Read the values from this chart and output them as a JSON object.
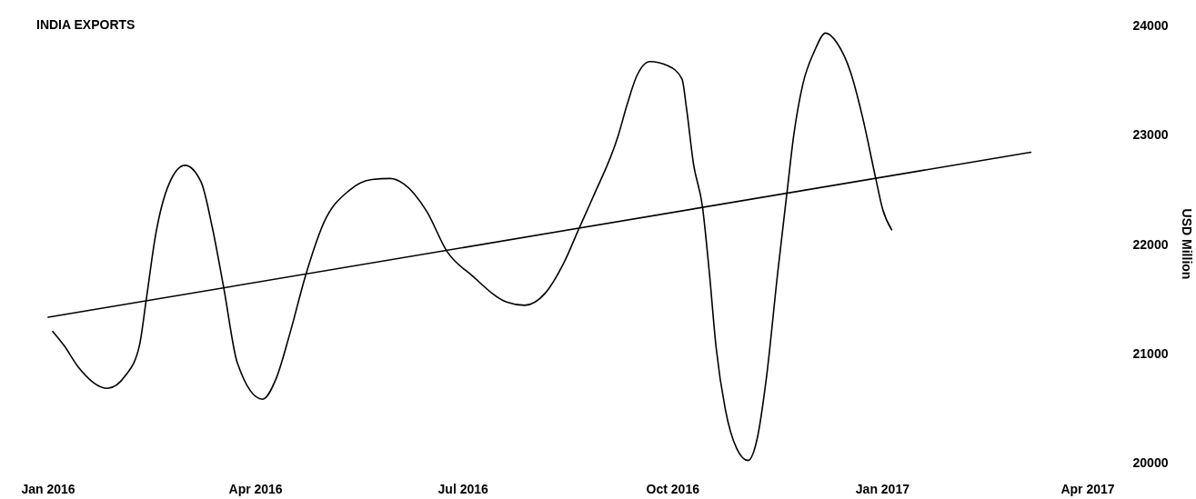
{
  "chart_data": {
    "type": "line",
    "title": "INDIA EXPORTS",
    "ylabel": "USD Million",
    "xlim": [
      "2016-01-01",
      "2017-04-01"
    ],
    "xticks": [
      {
        "value": "2016-01-01",
        "label": "Jan 2016"
      },
      {
        "value": "2016-04-01",
        "label": "Apr 2016"
      },
      {
        "value": "2016-07-01",
        "label": "Jul 2016"
      },
      {
        "value": "2016-10-01",
        "label": "Oct 2016"
      },
      {
        "value": "2017-01-01",
        "label": "Jan 2017"
      },
      {
        "value": "2017-04-01",
        "label": "Apr 2017"
      }
    ],
    "ylim": [
      20000,
      24000
    ],
    "yticks": [
      20000,
      21000,
      22000,
      23000,
      24000
    ],
    "grid": false,
    "marker": "none",
    "line_style": "solid",
    "series": [
      {
        "color": "#000000",
        "x": [
          "2016-01-03",
          "2016-01-08",
          "2016-01-14",
          "2016-01-27",
          "2016-02-04",
          "2016-02-10",
          "2016-02-13",
          "2016-02-17",
          "2016-02-23",
          "2016-03-01",
          "2016-03-08",
          "2016-03-13",
          "2016-03-18",
          "2016-03-24",
          "2016-04-04",
          "2016-04-10",
          "2016-04-16",
          "2016-04-23",
          "2016-05-01",
          "2016-05-12",
          "2016-05-22",
          "2016-05-30",
          "2016-06-05",
          "2016-06-15",
          "2016-06-24",
          "2016-07-05",
          "2016-07-20",
          "2016-07-28",
          "2016-08-06",
          "2016-08-14",
          "2016-08-21",
          "2016-08-27",
          "2016-09-07",
          "2016-09-11",
          "2016-09-15",
          "2016-09-21",
          "2016-09-29",
          "2016-10-05",
          "2016-10-07",
          "2016-10-10",
          "2016-10-14",
          "2016-10-17",
          "2016-10-20",
          "2016-10-24",
          "2016-10-29",
          "2016-11-03",
          "2016-11-07",
          "2016-11-11",
          "2016-11-16",
          "2016-11-20",
          "2016-11-23",
          "2016-11-27",
          "2016-12-02",
          "2016-12-07",
          "2016-12-12",
          "2016-12-18",
          "2016-12-23",
          "2016-12-29",
          "2017-01-01",
          "2017-01-05"
        ],
        "values": [
          21200,
          21070,
          20880,
          20680,
          20800,
          21070,
          21490,
          22070,
          22550,
          22720,
          22570,
          22150,
          21600,
          20910,
          20580,
          20770,
          21180,
          21720,
          22200,
          22490,
          22590,
          22600,
          22550,
          22300,
          21930,
          21710,
          21470,
          21440,
          21550,
          21820,
          22150,
          22430,
          22990,
          23280,
          23530,
          23670,
          23630,
          23510,
          23240,
          22740,
          22340,
          21740,
          21050,
          20490,
          20130,
          20020,
          20220,
          20770,
          21740,
          22460,
          22990,
          23460,
          23760,
          23930,
          23840,
          23570,
          23180,
          22600,
          22320,
          22130
        ]
      },
      {
        "color": "#000000",
        "x": [
          "2016-01-01",
          "2017-03-07"
        ],
        "values": [
          21330,
          22840
        ]
      }
    ]
  }
}
